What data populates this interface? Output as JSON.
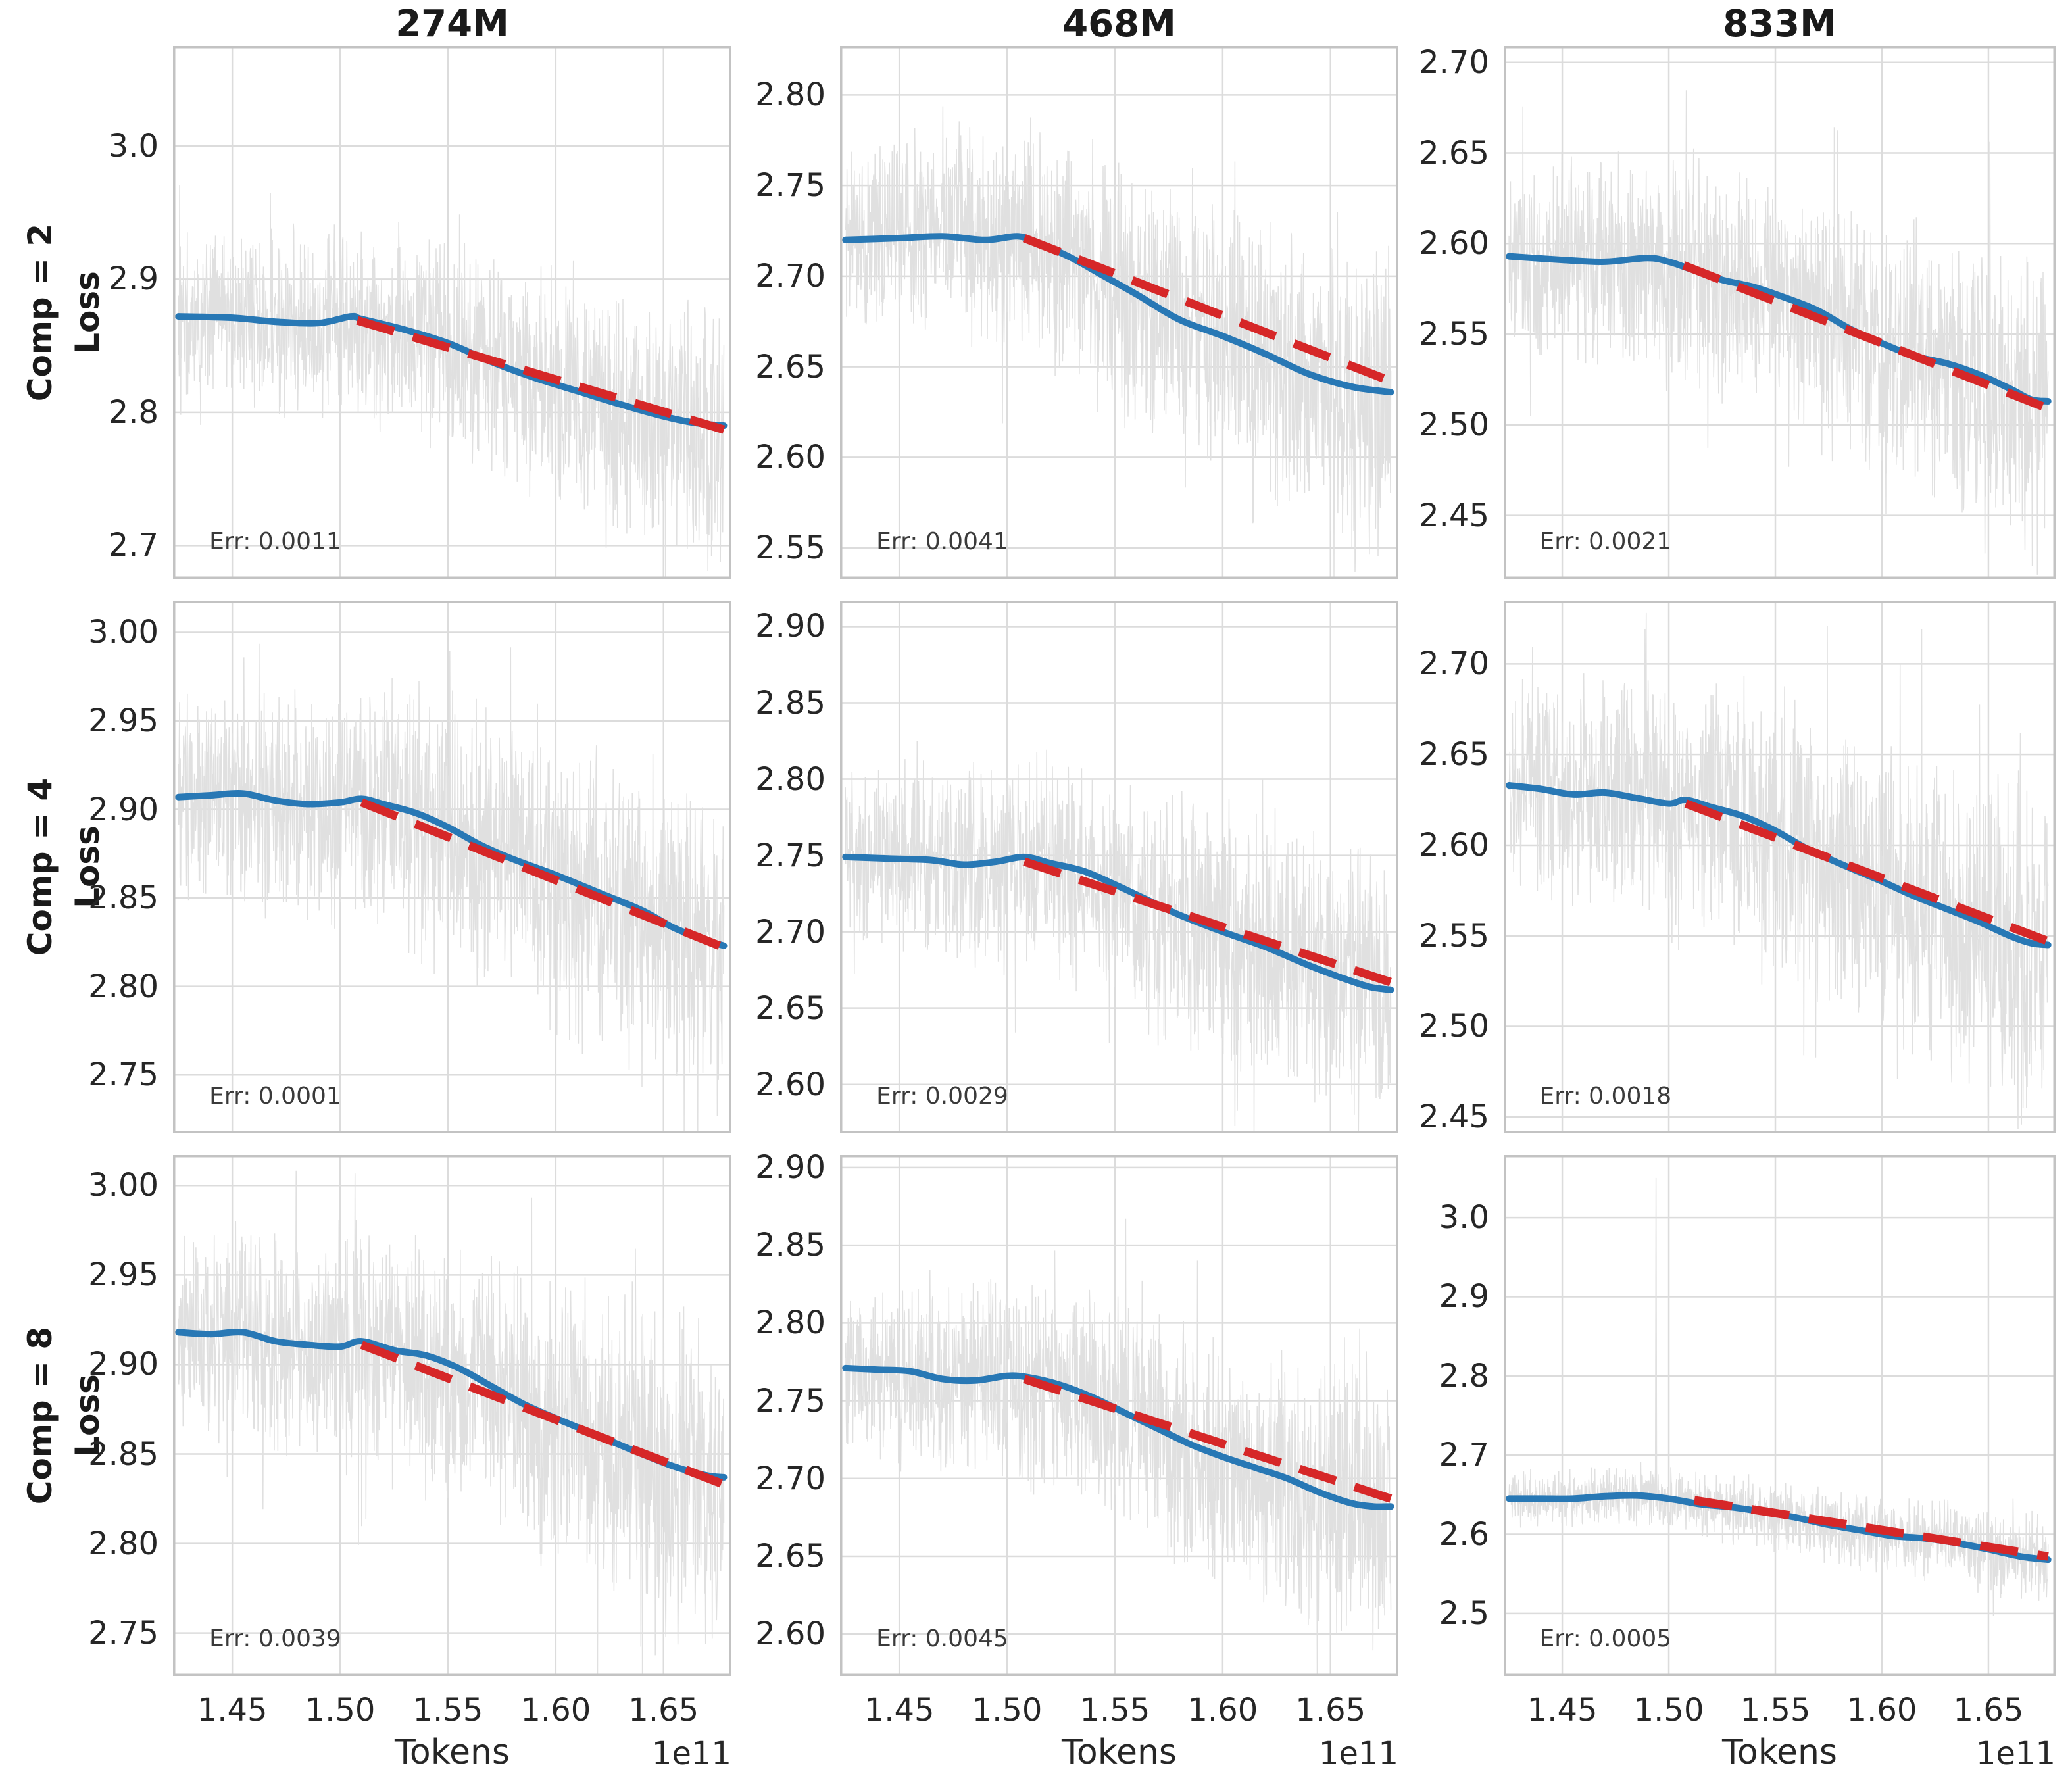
{
  "figure": {
    "column_titles": [
      "274M",
      "468M",
      "833M"
    ],
    "rows": [
      {
        "comp": "Comp = 2",
        "axis": "Loss"
      },
      {
        "comp": "Comp = 4",
        "axis": "Loss"
      },
      {
        "comp": "Comp = 8",
        "axis": "Loss"
      }
    ],
    "xlabel": "Tokens",
    "offset_label": "1e11",
    "xlim": [
      1.4225,
      1.6815
    ],
    "xticks": {
      "values": [
        1.45,
        1.5,
        1.55,
        1.6,
        1.65
      ],
      "labels": [
        "1.45",
        "1.50",
        "1.55",
        "1.60",
        "1.65"
      ]
    },
    "colors": {
      "raw": "#e0e0e0",
      "smoothed": "#2878b5",
      "fit": "#d62728",
      "grid": "#dcdcdc",
      "spine": "#c3c3c3",
      "text": "#1a1a1a",
      "tick_text": "#262626"
    },
    "grid": true,
    "legend": "none"
  },
  "chart_data": [
    {
      "type": "line",
      "model": "274M",
      "comp": 2,
      "err": 0.0011,
      "err_label": "Err: 0.0011",
      "ylim": [
        2.675,
        3.075
      ],
      "yticks": {
        "values": [
          2.7,
          2.8,
          2.9,
          3.0
        ],
        "labels": [
          "2.7",
          "2.8",
          "2.9",
          "3.0"
        ]
      },
      "smoothed": [
        [
          1.425,
          2.872
        ],
        [
          1.45,
          2.871
        ],
        [
          1.47,
          2.868
        ],
        [
          1.49,
          2.867
        ],
        [
          1.505,
          2.872
        ],
        [
          1.51,
          2.87
        ],
        [
          1.53,
          2.862
        ],
        [
          1.55,
          2.852
        ],
        [
          1.57,
          2.838
        ],
        [
          1.59,
          2.826
        ],
        [
          1.61,
          2.816
        ],
        [
          1.63,
          2.806
        ],
        [
          1.65,
          2.797
        ],
        [
          1.665,
          2.792
        ],
        [
          1.678,
          2.79
        ]
      ],
      "fit": [
        [
          1.508,
          2.869
        ],
        [
          1.678,
          2.787
        ]
      ],
      "noise_amp": 0.05,
      "seed": 11,
      "spikes": []
    },
    {
      "type": "line",
      "model": "468M",
      "comp": 2,
      "err": 0.0041,
      "err_label": "Err: 0.0041",
      "ylim": [
        2.533,
        2.827
      ],
      "yticks": {
        "values": [
          2.55,
          2.6,
          2.65,
          2.7,
          2.75,
          2.8
        ],
        "labels": [
          "2.55",
          "2.60",
          "2.65",
          "2.70",
          "2.75",
          "2.80"
        ]
      },
      "smoothed": [
        [
          1.425,
          2.72
        ],
        [
          1.45,
          2.721
        ],
        [
          1.47,
          2.722
        ],
        [
          1.49,
          2.72
        ],
        [
          1.505,
          2.722
        ],
        [
          1.515,
          2.718
        ],
        [
          1.53,
          2.71
        ],
        [
          1.545,
          2.7
        ],
        [
          1.56,
          2.69
        ],
        [
          1.58,
          2.676
        ],
        [
          1.6,
          2.667
        ],
        [
          1.62,
          2.657
        ],
        [
          1.64,
          2.646
        ],
        [
          1.66,
          2.639
        ],
        [
          1.678,
          2.636
        ]
      ],
      "fit": [
        [
          1.508,
          2.721
        ],
        [
          1.678,
          2.642
        ]
      ],
      "noise_amp": 0.044,
      "seed": 22,
      "spikes": []
    },
    {
      "type": "line",
      "model": "833M",
      "comp": 2,
      "err": 0.0021,
      "err_label": "Err: 0.0021",
      "ylim": [
        2.415,
        2.709
      ],
      "yticks": {
        "values": [
          2.45,
          2.5,
          2.55,
          2.6,
          2.65,
          2.7
        ],
        "labels": [
          "2.45",
          "2.50",
          "2.55",
          "2.60",
          "2.65",
          "2.70"
        ]
      },
      "smoothed": [
        [
          1.425,
          2.593
        ],
        [
          1.45,
          2.591
        ],
        [
          1.47,
          2.59
        ],
        [
          1.49,
          2.592
        ],
        [
          1.5,
          2.59
        ],
        [
          1.51,
          2.586
        ],
        [
          1.525,
          2.58
        ],
        [
          1.54,
          2.576
        ],
        [
          1.555,
          2.57
        ],
        [
          1.57,
          2.563
        ],
        [
          1.585,
          2.553
        ],
        [
          1.6,
          2.545
        ],
        [
          1.615,
          2.538
        ],
        [
          1.63,
          2.534
        ],
        [
          1.645,
          2.528
        ],
        [
          1.66,
          2.52
        ],
        [
          1.67,
          2.514
        ],
        [
          1.678,
          2.513
        ]
      ],
      "fit": [
        [
          1.507,
          2.588
        ],
        [
          1.678,
          2.509
        ]
      ],
      "noise_amp": 0.042,
      "seed": 33,
      "spikes": []
    },
    {
      "type": "line",
      "model": "274M",
      "comp": 4,
      "err": 0.0001,
      "err_label": "Err: 0.0001",
      "ylim": [
        2.717,
        3.018
      ],
      "yticks": {
        "values": [
          2.75,
          2.8,
          2.85,
          2.9,
          2.95,
          3.0
        ],
        "labels": [
          "2.75",
          "2.80",
          "2.85",
          "2.90",
          "2.95",
          "3.00"
        ]
      },
      "smoothed": [
        [
          1.425,
          2.907
        ],
        [
          1.44,
          2.908
        ],
        [
          1.455,
          2.909
        ],
        [
          1.47,
          2.905
        ],
        [
          1.485,
          2.903
        ],
        [
          1.5,
          2.904
        ],
        [
          1.51,
          2.906
        ],
        [
          1.52,
          2.903
        ],
        [
          1.535,
          2.898
        ],
        [
          1.55,
          2.89
        ],
        [
          1.565,
          2.88
        ],
        [
          1.58,
          2.872
        ],
        [
          1.6,
          2.863
        ],
        [
          1.62,
          2.853
        ],
        [
          1.64,
          2.843
        ],
        [
          1.655,
          2.833
        ],
        [
          1.67,
          2.826
        ],
        [
          1.678,
          2.823
        ]
      ],
      "fit": [
        [
          1.51,
          2.904
        ],
        [
          1.678,
          2.822
        ]
      ],
      "noise_amp": 0.048,
      "seed": 44,
      "spikes": []
    },
    {
      "type": "line",
      "model": "468M",
      "comp": 4,
      "err": 0.0029,
      "err_label": "Err: 0.0029",
      "ylim": [
        2.568,
        2.917
      ],
      "yticks": {
        "values": [
          2.6,
          2.65,
          2.7,
          2.75,
          2.8,
          2.85,
          2.9
        ],
        "labels": [
          "2.60",
          "2.65",
          "2.70",
          "2.75",
          "2.80",
          "2.85",
          "2.90"
        ]
      },
      "smoothed": [
        [
          1.425,
          2.749
        ],
        [
          1.445,
          2.748
        ],
        [
          1.465,
          2.747
        ],
        [
          1.48,
          2.744
        ],
        [
          1.495,
          2.746
        ],
        [
          1.508,
          2.749
        ],
        [
          1.52,
          2.745
        ],
        [
          1.535,
          2.74
        ],
        [
          1.55,
          2.731
        ],
        [
          1.565,
          2.721
        ],
        [
          1.58,
          2.711
        ],
        [
          1.6,
          2.7
        ],
        [
          1.62,
          2.69
        ],
        [
          1.64,
          2.678
        ],
        [
          1.655,
          2.67
        ],
        [
          1.668,
          2.664
        ],
        [
          1.678,
          2.662
        ]
      ],
      "fit": [
        [
          1.508,
          2.746
        ],
        [
          1.678,
          2.667
        ]
      ],
      "noise_amp": 0.048,
      "seed": 55,
      "spikes": []
    },
    {
      "type": "line",
      "model": "833M",
      "comp": 4,
      "err": 0.0018,
      "err_label": "Err: 0.0018",
      "ylim": [
        2.441,
        2.735
      ],
      "yticks": {
        "values": [
          2.45,
          2.5,
          2.55,
          2.6,
          2.65,
          2.7
        ],
        "labels": [
          "2.45",
          "2.50",
          "2.55",
          "2.60",
          "2.65",
          "2.70"
        ]
      },
      "smoothed": [
        [
          1.425,
          2.633
        ],
        [
          1.44,
          2.631
        ],
        [
          1.455,
          2.628
        ],
        [
          1.47,
          2.629
        ],
        [
          1.485,
          2.626
        ],
        [
          1.5,
          2.623
        ],
        [
          1.508,
          2.625
        ],
        [
          1.52,
          2.621
        ],
        [
          1.535,
          2.616
        ],
        [
          1.55,
          2.608
        ],
        [
          1.565,
          2.598
        ],
        [
          1.58,
          2.59
        ],
        [
          1.6,
          2.58
        ],
        [
          1.615,
          2.572
        ],
        [
          1.63,
          2.565
        ],
        [
          1.645,
          2.558
        ],
        [
          1.66,
          2.55
        ],
        [
          1.67,
          2.546
        ],
        [
          1.678,
          2.545
        ]
      ],
      "fit": [
        [
          1.508,
          2.623
        ],
        [
          1.678,
          2.547
        ]
      ],
      "noise_amp": 0.048,
      "seed": 66,
      "spikes": []
    },
    {
      "type": "line",
      "model": "274M",
      "comp": 8,
      "err": 0.0039,
      "err_label": "Err: 0.0039",
      "ylim": [
        2.726,
        3.017
      ],
      "yticks": {
        "values": [
          2.75,
          2.8,
          2.85,
          2.9,
          2.95,
          3.0
        ],
        "labels": [
          "2.75",
          "2.80",
          "2.85",
          "2.90",
          "2.95",
          "3.00"
        ]
      },
      "smoothed": [
        [
          1.425,
          2.918
        ],
        [
          1.44,
          2.917
        ],
        [
          1.455,
          2.918
        ],
        [
          1.47,
          2.913
        ],
        [
          1.485,
          2.911
        ],
        [
          1.5,
          2.91
        ],
        [
          1.51,
          2.913
        ],
        [
          1.525,
          2.908
        ],
        [
          1.54,
          2.905
        ],
        [
          1.555,
          2.898
        ],
        [
          1.57,
          2.888
        ],
        [
          1.585,
          2.878
        ],
        [
          1.6,
          2.87
        ],
        [
          1.62,
          2.86
        ],
        [
          1.64,
          2.85
        ],
        [
          1.655,
          2.843
        ],
        [
          1.67,
          2.838
        ],
        [
          1.678,
          2.837
        ]
      ],
      "fit": [
        [
          1.51,
          2.911
        ],
        [
          1.678,
          2.833
        ]
      ],
      "noise_amp": 0.046,
      "seed": 77,
      "spikes": []
    },
    {
      "type": "line",
      "model": "468M",
      "comp": 8,
      "err": 0.0045,
      "err_label": "Err: 0.0045",
      "ylim": [
        2.573,
        2.908
      ],
      "yticks": {
        "values": [
          2.6,
          2.65,
          2.7,
          2.75,
          2.8,
          2.85,
          2.9
        ],
        "labels": [
          "2.60",
          "2.65",
          "2.70",
          "2.75",
          "2.80",
          "2.85",
          "2.90"
        ]
      },
      "smoothed": [
        [
          1.425,
          2.771
        ],
        [
          1.44,
          2.77
        ],
        [
          1.455,
          2.769
        ],
        [
          1.47,
          2.764
        ],
        [
          1.485,
          2.763
        ],
        [
          1.5,
          2.766
        ],
        [
          1.51,
          2.765
        ],
        [
          1.525,
          2.76
        ],
        [
          1.54,
          2.752
        ],
        [
          1.555,
          2.742
        ],
        [
          1.57,
          2.732
        ],
        [
          1.585,
          2.722
        ],
        [
          1.6,
          2.714
        ],
        [
          1.615,
          2.707
        ],
        [
          1.63,
          2.7
        ],
        [
          1.645,
          2.691
        ],
        [
          1.66,
          2.684
        ],
        [
          1.67,
          2.682
        ],
        [
          1.678,
          2.682
        ]
      ],
      "fit": [
        [
          1.508,
          2.764
        ],
        [
          1.678,
          2.687
        ]
      ],
      "noise_amp": 0.045,
      "seed": 88,
      "spikes": []
    },
    {
      "type": "line",
      "model": "833M",
      "comp": 8,
      "err": 0.0005,
      "err_label": "Err: 0.0005",
      "ylim": [
        2.421,
        3.079
      ],
      "yticks": {
        "values": [
          2.5,
          2.6,
          2.7,
          2.8,
          2.9,
          3.0
        ],
        "labels": [
          "2.5",
          "2.6",
          "2.7",
          "2.8",
          "2.9",
          "3.0"
        ]
      },
      "smoothed": [
        [
          1.425,
          2.645
        ],
        [
          1.44,
          2.645
        ],
        [
          1.455,
          2.645
        ],
        [
          1.47,
          2.648
        ],
        [
          1.485,
          2.649
        ],
        [
          1.5,
          2.645
        ],
        [
          1.515,
          2.638
        ],
        [
          1.53,
          2.634
        ],
        [
          1.545,
          2.628
        ],
        [
          1.56,
          2.621
        ],
        [
          1.575,
          2.612
        ],
        [
          1.59,
          2.605
        ],
        [
          1.605,
          2.598
        ],
        [
          1.62,
          2.595
        ],
        [
          1.635,
          2.589
        ],
        [
          1.65,
          2.581
        ],
        [
          1.665,
          2.572
        ],
        [
          1.678,
          2.568
        ]
      ],
      "fit": [
        [
          1.512,
          2.643
        ],
        [
          1.678,
          2.572
        ]
      ],
      "noise_amp": 0.028,
      "seed": 99,
      "spikes": [
        [
          1.494,
          3.05
        ]
      ]
    }
  ]
}
